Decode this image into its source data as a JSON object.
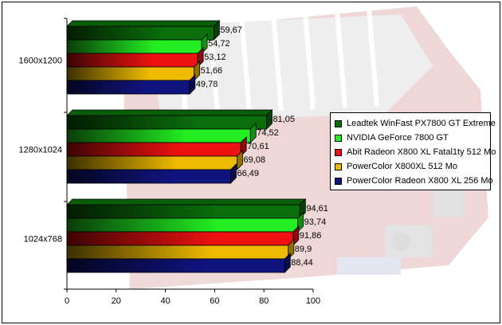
{
  "chart_data": {
    "type": "bar",
    "orientation": "horizontal",
    "categories": [
      "1600x1200",
      "1280x1024",
      "1024x768"
    ],
    "series": [
      {
        "name": "Leadtek WinFast PX7800 GT Extreme",
        "color": "#0a6e0a",
        "values": [
          59.67,
          81.05,
          94.61
        ],
        "labels": [
          "59,67",
          "81,05",
          "94,61"
        ]
      },
      {
        "name": "NVIDIA GeForce 7800 GT",
        "color": "#22ee22",
        "values": [
          54.72,
          74.52,
          93.74
        ],
        "labels": [
          "54,72",
          "74,52",
          "93,74"
        ]
      },
      {
        "name": "Abit Radeon X800 XL Fatal1ty 512 Mo",
        "color": "#ee1111",
        "values": [
          53.12,
          70.61,
          91.86
        ],
        "labels": [
          "53,12",
          "70,61",
          "91,86"
        ]
      },
      {
        "name": "PowerColor X800XL 512 Mo",
        "color": "#eebb00",
        "values": [
          51.66,
          69.08,
          89.9
        ],
        "labels": [
          "51,66",
          "69,08",
          "89,9"
        ]
      },
      {
        "name": "PowerColor Radeon X800 XL 256 Mo",
        "color": "#101480",
        "values": [
          49.78,
          66.49,
          88.44
        ],
        "labels": [
          "49,78",
          "66,49",
          "88,44"
        ]
      }
    ],
    "xlim": [
      0,
      100
    ],
    "xticks": [
      0,
      20,
      40,
      60,
      80,
      100
    ],
    "xtick_labels": [
      "0",
      "20",
      "40",
      "60",
      "80",
      "100"
    ],
    "grid": false,
    "legend_position": "right"
  }
}
